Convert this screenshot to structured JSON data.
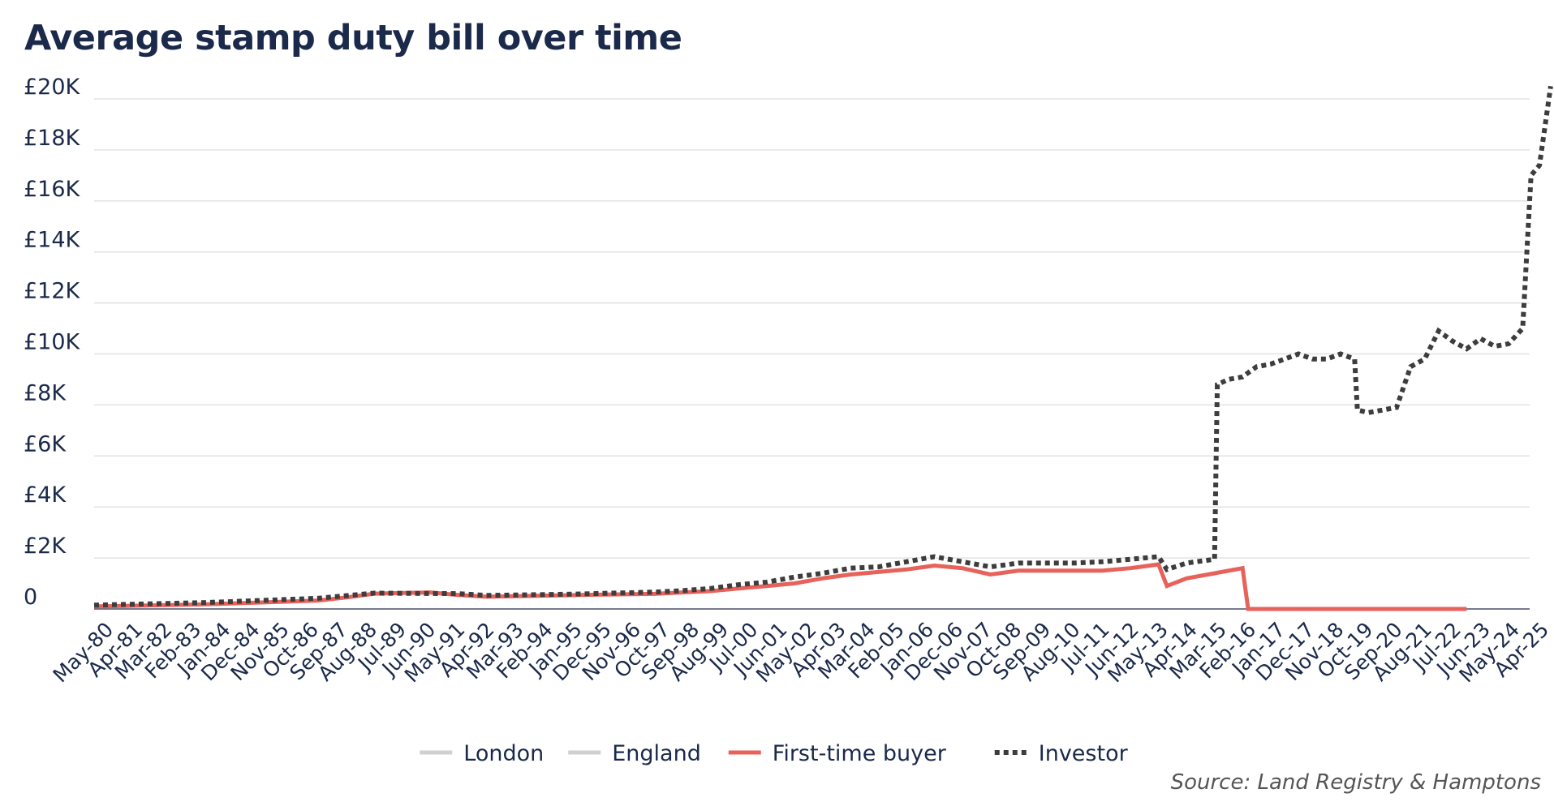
{
  "chart_data": {
    "type": "line",
    "title": "Average stamp duty bill over time",
    "source": "Source: Land Registry & Hamptons",
    "ylim": [
      0,
      20000
    ],
    "y_ticks": [
      {
        "value": 0,
        "label": "0"
      },
      {
        "value": 2000,
        "label": "£2K"
      },
      {
        "value": 4000,
        "label": "£4K"
      },
      {
        "value": 6000,
        "label": "£6K"
      },
      {
        "value": 8000,
        "label": "£8K"
      },
      {
        "value": 10000,
        "label": "£10K"
      },
      {
        "value": 12000,
        "label": "£12K"
      },
      {
        "value": 14000,
        "label": "£14K"
      },
      {
        "value": 16000,
        "label": "£16K"
      },
      {
        "value": 18000,
        "label": "£18K"
      },
      {
        "value": 20000,
        "label": "£20K"
      }
    ],
    "x_ticks": [
      "May-80",
      "Apr-81",
      "Mar-82",
      "Feb-83",
      "Jan-84",
      "Dec-84",
      "Nov-85",
      "Oct-86",
      "Sep-87",
      "Aug-88",
      "Jul-89",
      "Jun-90",
      "May-91",
      "Apr-92",
      "Mar-93",
      "Feb-94",
      "Jan-95",
      "Dec-95",
      "Nov-96",
      "Oct-97",
      "Sep-98",
      "Aug-99",
      "Jul-00",
      "Jun-01",
      "May-02",
      "Apr-03",
      "Mar-04",
      "Feb-05",
      "Jan-06",
      "Dec-06",
      "Nov-07",
      "Oct-08",
      "Sep-09",
      "Aug-10",
      "Jul-11",
      "Jun-12",
      "May-13",
      "Apr-14",
      "Mar-15",
      "Feb-16",
      "Jan-17",
      "Dec-17",
      "Nov-18",
      "Oct-19",
      "Sep-20",
      "Aug-21",
      "Jul-22",
      "Jun-23",
      "May-24",
      "Apr-25"
    ],
    "grid": true,
    "legend_position": "bottom-center",
    "series": [
      {
        "name": "London",
        "color": "#d0d0d0",
        "style": "solid",
        "points": []
      },
      {
        "name": "England",
        "color": "#d0d0d0",
        "style": "solid",
        "points": []
      },
      {
        "name": "First-time buyer",
        "color": "#e8625c",
        "style": "solid",
        "points": [
          [
            0,
            100
          ],
          [
            4,
            180
          ],
          [
            8,
            330
          ],
          [
            9,
            450
          ],
          [
            10,
            600
          ],
          [
            12,
            650
          ],
          [
            13,
            550
          ],
          [
            14,
            480
          ],
          [
            16,
            520
          ],
          [
            18,
            560
          ],
          [
            20,
            590
          ],
          [
            21,
            650
          ],
          [
            22,
            700
          ],
          [
            23,
            800
          ],
          [
            24,
            900
          ],
          [
            25,
            1000
          ],
          [
            26,
            1200
          ],
          [
            27,
            1350
          ],
          [
            28,
            1450
          ],
          [
            29,
            1550
          ],
          [
            30,
            1700
          ],
          [
            31,
            1600
          ],
          [
            32,
            1350
          ],
          [
            33,
            1500
          ],
          [
            34,
            1500
          ],
          [
            35,
            1500
          ],
          [
            36,
            1500
          ],
          [
            37,
            1600
          ],
          [
            38,
            1750
          ],
          [
            38.3,
            900
          ],
          [
            39,
            1200
          ],
          [
            40,
            1400
          ],
          [
            41,
            1600
          ],
          [
            41.2,
            0
          ],
          [
            49,
            0
          ]
        ]
      },
      {
        "name": "Investor",
        "color": "#3d3d3d",
        "style": "dotted",
        "points": [
          [
            0,
            150
          ],
          [
            4,
            250
          ],
          [
            8,
            420
          ],
          [
            9,
            520
          ],
          [
            10,
            620
          ],
          [
            13,
            600
          ],
          [
            14,
            530
          ],
          [
            17,
            580
          ],
          [
            20,
            660
          ],
          [
            21,
            720
          ],
          [
            22,
            800
          ],
          [
            23,
            950
          ],
          [
            24,
            1050
          ],
          [
            25,
            1250
          ],
          [
            26,
            1400
          ],
          [
            27,
            1600
          ],
          [
            28,
            1650
          ],
          [
            29,
            1850
          ],
          [
            30,
            2050
          ],
          [
            31,
            1850
          ],
          [
            32,
            1650
          ],
          [
            33,
            1800
          ],
          [
            34,
            1800
          ],
          [
            35,
            1800
          ],
          [
            36,
            1850
          ],
          [
            37,
            1950
          ],
          [
            38,
            2050
          ],
          [
            38.3,
            1550
          ],
          [
            39,
            1800
          ],
          [
            40,
            1950
          ],
          [
            40.1,
            8800
          ],
          [
            40.5,
            9000
          ],
          [
            41,
            9100
          ],
          [
            41.5,
            9500
          ],
          [
            42,
            9600
          ],
          [
            42.5,
            9800
          ],
          [
            43,
            10000
          ],
          [
            43.5,
            9800
          ],
          [
            44,
            9800
          ],
          [
            44.5,
            10000
          ],
          [
            45,
            9800
          ],
          [
            45.1,
            7800
          ],
          [
            45.5,
            7700
          ],
          [
            46,
            7800
          ],
          [
            46.5,
            7900
          ],
          [
            47,
            9500
          ],
          [
            47.5,
            9800
          ],
          [
            48,
            10900
          ],
          [
            48.5,
            10500
          ],
          [
            49,
            10200
          ],
          [
            49.5,
            10600
          ],
          [
            50,
            10300
          ],
          [
            50.5,
            10400
          ],
          [
            51,
            11000
          ],
          [
            51.3,
            17000
          ],
          [
            51.6,
            17400
          ],
          [
            52,
            20500
          ]
        ]
      }
    ]
  }
}
